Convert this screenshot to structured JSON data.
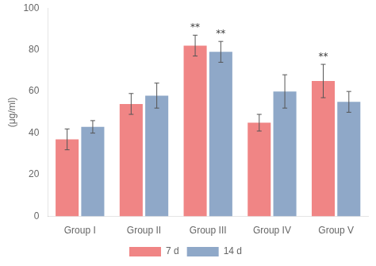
{
  "chart_data": {
    "type": "bar",
    "categories": [
      "Group I",
      "Group II",
      "Group III",
      "Group IV",
      "Group V"
    ],
    "series": [
      {
        "name": "7 d",
        "color": "#f08585",
        "values": [
          37,
          54,
          82,
          45,
          65
        ],
        "errors": [
          5,
          5,
          5,
          4,
          8
        ]
      },
      {
        "name": "14 d",
        "color": "#8fa8c8",
        "values": [
          43,
          58,
          79,
          60,
          55
        ],
        "errors": [
          3,
          6,
          5,
          8,
          5
        ]
      }
    ],
    "annotations": [
      {
        "text": "**",
        "category": "Group III",
        "series": "7 d"
      },
      {
        "text": "**",
        "category": "Group V",
        "series": "7 d"
      },
      {
        "text": "**",
        "category": "Group III",
        "series": "14 d"
      }
    ],
    "ylabel": "(μg/ml)",
    "ylim": [
      0,
      100
    ],
    "yticks": [
      0,
      20,
      40,
      60,
      80,
      100
    ],
    "grid": false,
    "legend": "bottom"
  }
}
